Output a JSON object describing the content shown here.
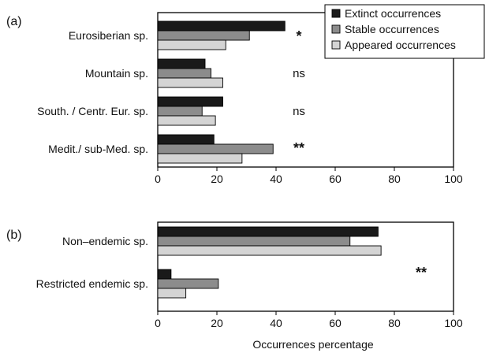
{
  "chart_data": [
    {
      "type": "bar",
      "orientation": "horizontal",
      "panel_label": "(a)",
      "categories": [
        "Eurosiberian sp.",
        "Mountain sp.",
        "South. / Centr. Eur. sp.",
        "Medit./ sub-Med. sp."
      ],
      "series": [
        {
          "name": "Extinct occurrences",
          "color": "#1a1a1a",
          "values": [
            43,
            16,
            22,
            19
          ]
        },
        {
          "name": "Stable occurrences",
          "color": "#8c8c8c",
          "values": [
            31,
            18,
            15,
            39
          ]
        },
        {
          "name": "Appeared occurrences",
          "color": "#d4d4d4",
          "values": [
            23,
            22,
            19.5,
            28.5
          ]
        }
      ],
      "significance": [
        "*",
        "ns",
        "ns",
        "**"
      ],
      "xlim": [
        0,
        100
      ],
      "xticks": [
        "0",
        "20",
        "40",
        "60",
        "80",
        "100"
      ],
      "legend": "top-right",
      "grid": false
    },
    {
      "type": "bar",
      "orientation": "horizontal",
      "panel_label": "(b)",
      "categories": [
        "Non–endemic sp.",
        "Restricted endemic sp."
      ],
      "series": [
        {
          "name": "Extinct occurrences",
          "color": "#1a1a1a",
          "values": [
            74.5,
            4.5
          ]
        },
        {
          "name": "Stable occurrences",
          "color": "#8c8c8c",
          "values": [
            65,
            20.5
          ]
        },
        {
          "name": "Appeared occurrences",
          "color": "#d4d4d4",
          "values": [
            75.5,
            9.5
          ]
        }
      ],
      "annotation": "**",
      "xlim": [
        0,
        100
      ],
      "xticks": [
        "0",
        "20",
        "40",
        "60",
        "80",
        "100"
      ],
      "xlabel": "Occurrences percentage",
      "grid": false
    }
  ]
}
